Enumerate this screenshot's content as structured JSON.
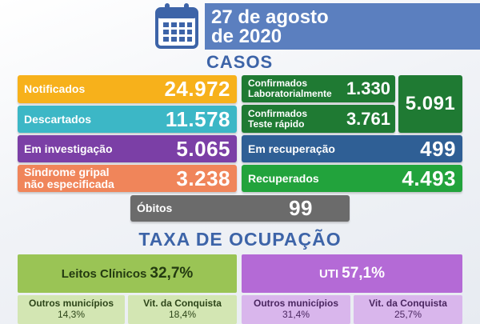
{
  "header": {
    "date_line1": "27 de agosto",
    "date_line2": "de 2020",
    "icon": "calendar-icon"
  },
  "casos_title": "CASOS",
  "cards": {
    "notificados": {
      "label": "Notificados",
      "value": "24.972",
      "color": "#f7b11b"
    },
    "descartados": {
      "label": "Descartados",
      "value": "11.578",
      "color": "#3cb7c6"
    },
    "investigacao": {
      "label": "Em investigação",
      "value": "5.065",
      "color": "#7b3fa6"
    },
    "sindrome": {
      "label_line1": "Síndrome gripal",
      "label_line2": "não especificada",
      "value": "3.238",
      "color": "#f0855a"
    },
    "conf_lab": {
      "label_line1": "Confirmados",
      "label_line2": "Laboratorialmente",
      "value": "1.330",
      "color": "#1f7a33"
    },
    "conf_rapido": {
      "label_line1": "Confirmados",
      "label_line2": "Teste rápido",
      "value": "3.761",
      "color": "#1f7a33"
    },
    "confirmados_total": {
      "value": "5.091",
      "color": "#1f7a33"
    },
    "recuperacao": {
      "label": "Em recuperação",
      "value": "499",
      "color": "#2f5f95"
    },
    "recuperados": {
      "label": "Recuperados",
      "value": "4.493",
      "color": "#22a33c"
    },
    "obitos": {
      "label": "Óbitos",
      "value": "99",
      "color": "#6b6b6b"
    }
  },
  "taxa_title": "TAXA DE OCUPAÇÃO",
  "ocupacao": {
    "clinicos": {
      "label": "Leitos Clínicos",
      "value": "32,7%",
      "color": "#9ac455",
      "sub": [
        {
          "label": "Outros municípios",
          "value": "14,3%"
        },
        {
          "label": "Vit. da Conquista",
          "value": "18,4%"
        }
      ]
    },
    "uti": {
      "label": "UTI",
      "value": "57,1%",
      "color": "#b46ad6",
      "sub": [
        {
          "label": "Outros municípios",
          "value": "31,4%"
        },
        {
          "label": "Vit. da Conquista",
          "value": "25,7%"
        }
      ]
    }
  }
}
